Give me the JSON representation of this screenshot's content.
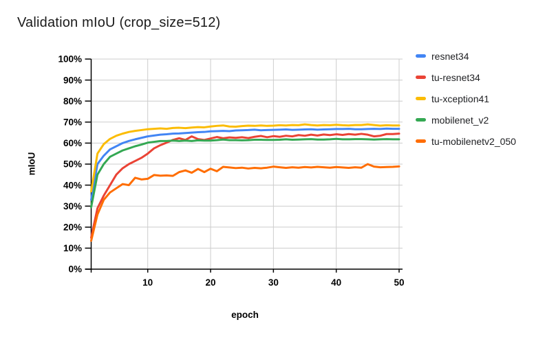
{
  "chart_data": {
    "type": "line",
    "title": "Validation mIoU (crop_size=512)",
    "xlabel": "epoch",
    "ylabel": "mIoU",
    "xlim": [
      1,
      50
    ],
    "ylim": [
      0,
      100
    ],
    "x_ticks": [
      10,
      20,
      30,
      40,
      50
    ],
    "y_ticks": [
      0,
      10,
      20,
      30,
      40,
      50,
      60,
      70,
      80,
      90,
      100
    ],
    "y_tick_suffix": "%",
    "grid": true,
    "legend_position": "right",
    "axis_color": "#000000",
    "gridline_color": "#cccccc",
    "x": [
      1,
      2,
      3,
      4,
      5,
      6,
      7,
      8,
      9,
      10,
      11,
      12,
      13,
      14,
      15,
      16,
      17,
      18,
      19,
      20,
      21,
      22,
      23,
      24,
      25,
      26,
      27,
      28,
      29,
      30,
      31,
      32,
      33,
      34,
      35,
      36,
      37,
      38,
      39,
      40,
      41,
      42,
      43,
      44,
      45,
      46,
      47,
      48,
      49,
      50
    ],
    "series": [
      {
        "name": "resnet34",
        "color": "#4285F4",
        "values": [
          33,
          50,
          54,
          57,
          58.5,
          60,
          61,
          61.8,
          62.5,
          63.2,
          63.6,
          64,
          64.2,
          64.5,
          64.6,
          64.8,
          65,
          65.2,
          65.3,
          65.6,
          65.7,
          65.8,
          65.7,
          66,
          66.1,
          66.2,
          66.4,
          66.1,
          66.2,
          66.3,
          66.4,
          66.5,
          66.3,
          66.4,
          66.5,
          66.6,
          66.4,
          66.5,
          66.6,
          66.7,
          66.7,
          66.8,
          66.6,
          66.6,
          66.7,
          66.8,
          66.7,
          66.9,
          66.8,
          66.8
        ]
      },
      {
        "name": "tu-resnet34",
        "color": "#EA4335",
        "values": [
          15,
          29,
          35,
          40,
          45,
          48,
          50,
          51.5,
          53,
          55,
          57.5,
          59,
          60.2,
          61.5,
          62.3,
          61.5,
          63.2,
          61.9,
          61.5,
          62.2,
          62.9,
          62.3,
          62.7,
          62.5,
          62.8,
          62.4,
          63,
          63.4,
          62.8,
          63.3,
          63,
          63.5,
          63.2,
          63.8,
          63.5,
          64,
          63.6,
          64.1,
          63.8,
          64.2,
          63.9,
          64.3,
          64,
          64.4,
          64,
          63.2,
          63.5,
          64.3,
          64.3,
          64.5
        ]
      },
      {
        "name": "tu-xception41",
        "color": "#FBBC04",
        "values": [
          37,
          55,
          59.5,
          62,
          63.5,
          64.5,
          65.3,
          65.8,
          66.2,
          66.6,
          66.8,
          67,
          66.8,
          67.2,
          67.3,
          67.1,
          67.4,
          67.6,
          67.5,
          67.9,
          68.2,
          68.4,
          67.9,
          67.8,
          68.1,
          68.3,
          68.2,
          68.4,
          68.2,
          68.3,
          68.5,
          68.4,
          68.6,
          68.5,
          68.9,
          68.6,
          68.4,
          68.6,
          68.5,
          68.7,
          68.5,
          68.4,
          68.6,
          68.6,
          68.9,
          68.6,
          68.3,
          68.5,
          68.4,
          68.4
        ]
      },
      {
        "name": "mobilenet_v2",
        "color": "#34A853",
        "values": [
          29.5,
          45,
          50,
          53.5,
          55,
          56.5,
          57.5,
          58.5,
          59.3,
          60.2,
          60.6,
          61,
          61,
          61.2,
          61,
          61.2,
          61,
          61.3,
          61.2,
          61.2,
          61.4,
          61.7,
          61.4,
          61.4,
          61.3,
          61.4,
          61.6,
          61.6,
          61.5,
          61.5,
          61.6,
          61.8,
          61.6,
          61.7,
          61.8,
          61.9,
          61.7,
          61.7,
          61.8,
          62,
          61.8,
          61.8,
          61.9,
          61.9,
          61.8,
          61.7,
          61.8,
          61.9,
          61.8,
          61.8
        ]
      },
      {
        "name": "tu-mobilenetv2_050",
        "color": "#FF6D01",
        "values": [
          13.5,
          26,
          33,
          36.5,
          38.5,
          40.5,
          40,
          43.5,
          42.7,
          43,
          44.8,
          44.5,
          44.6,
          44.4,
          46.2,
          47,
          45.9,
          47.7,
          46.2,
          47.8,
          46.6,
          48.7,
          48.4,
          48.1,
          48.3,
          47.9,
          48.2,
          48,
          48.3,
          48.8,
          48.5,
          48.2,
          48.5,
          48.3,
          48.6,
          48.4,
          48.7,
          48.5,
          48.3,
          48.6,
          48.4,
          48.2,
          48.5,
          48.3,
          50,
          48.8,
          48.5,
          48.6,
          48.7,
          48.9
        ]
      }
    ]
  }
}
